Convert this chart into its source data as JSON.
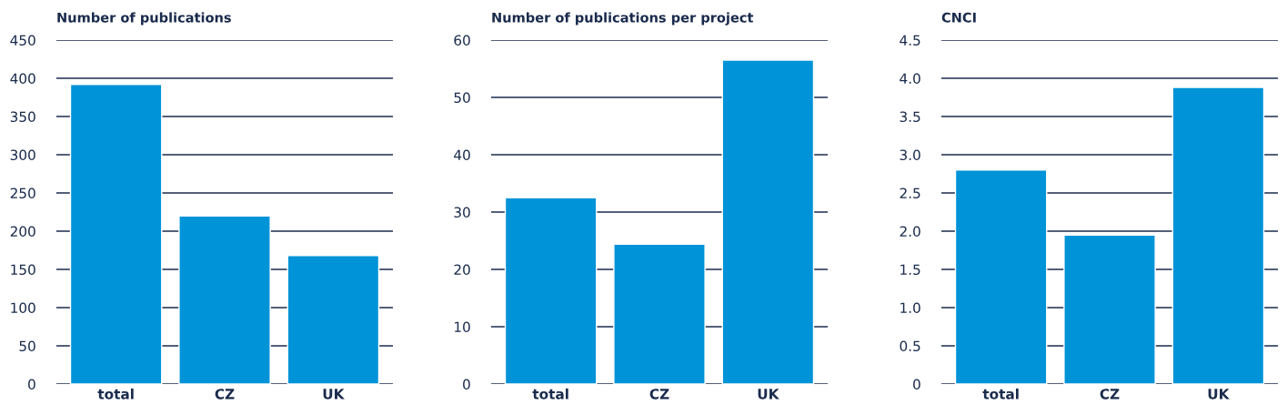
{
  "chart_data": [
    {
      "type": "bar",
      "title": "Number of publications",
      "categories": [
        "total",
        "CZ",
        "UK"
      ],
      "values": [
        392,
        220,
        168
      ],
      "color": "#0093d8",
      "ylim": [
        0,
        450
      ],
      "yticks": [
        0,
        50,
        100,
        150,
        200,
        250,
        300,
        350,
        400,
        450
      ],
      "grid": "y"
    },
    {
      "type": "bar",
      "title": "Number of publications per project",
      "categories": [
        "total",
        "CZ",
        "UK"
      ],
      "values": [
        32.5,
        24.4,
        56.5
      ],
      "color": "#0093d8",
      "ylim": [
        0,
        60
      ],
      "yticks": [
        0,
        10,
        20,
        30,
        40,
        50,
        60
      ],
      "grid": "y"
    },
    {
      "type": "bar",
      "title": "CNCI",
      "categories": [
        "total",
        "CZ",
        "UK"
      ],
      "values": [
        2.8,
        1.95,
        3.88
      ],
      "color": "#0093d8",
      "ylim": [
        0,
        4.5
      ],
      "yticks": [
        {
          "value": 0,
          "label": "0"
        },
        {
          "value": 0.5,
          "label": "0.5"
        },
        {
          "value": 1,
          "label": "1.0"
        },
        {
          "value": 1.5,
          "label": "1.5"
        },
        {
          "value": 2,
          "label": "2.0"
        },
        {
          "value": 2.5,
          "label": "2.5"
        },
        {
          "value": 3,
          "label": "3.0"
        },
        {
          "value": 3.5,
          "label": "3.5"
        },
        {
          "value": 4,
          "label": "4.0"
        },
        {
          "value": 4.5,
          "label": "4.5"
        }
      ],
      "grid": "y"
    }
  ]
}
